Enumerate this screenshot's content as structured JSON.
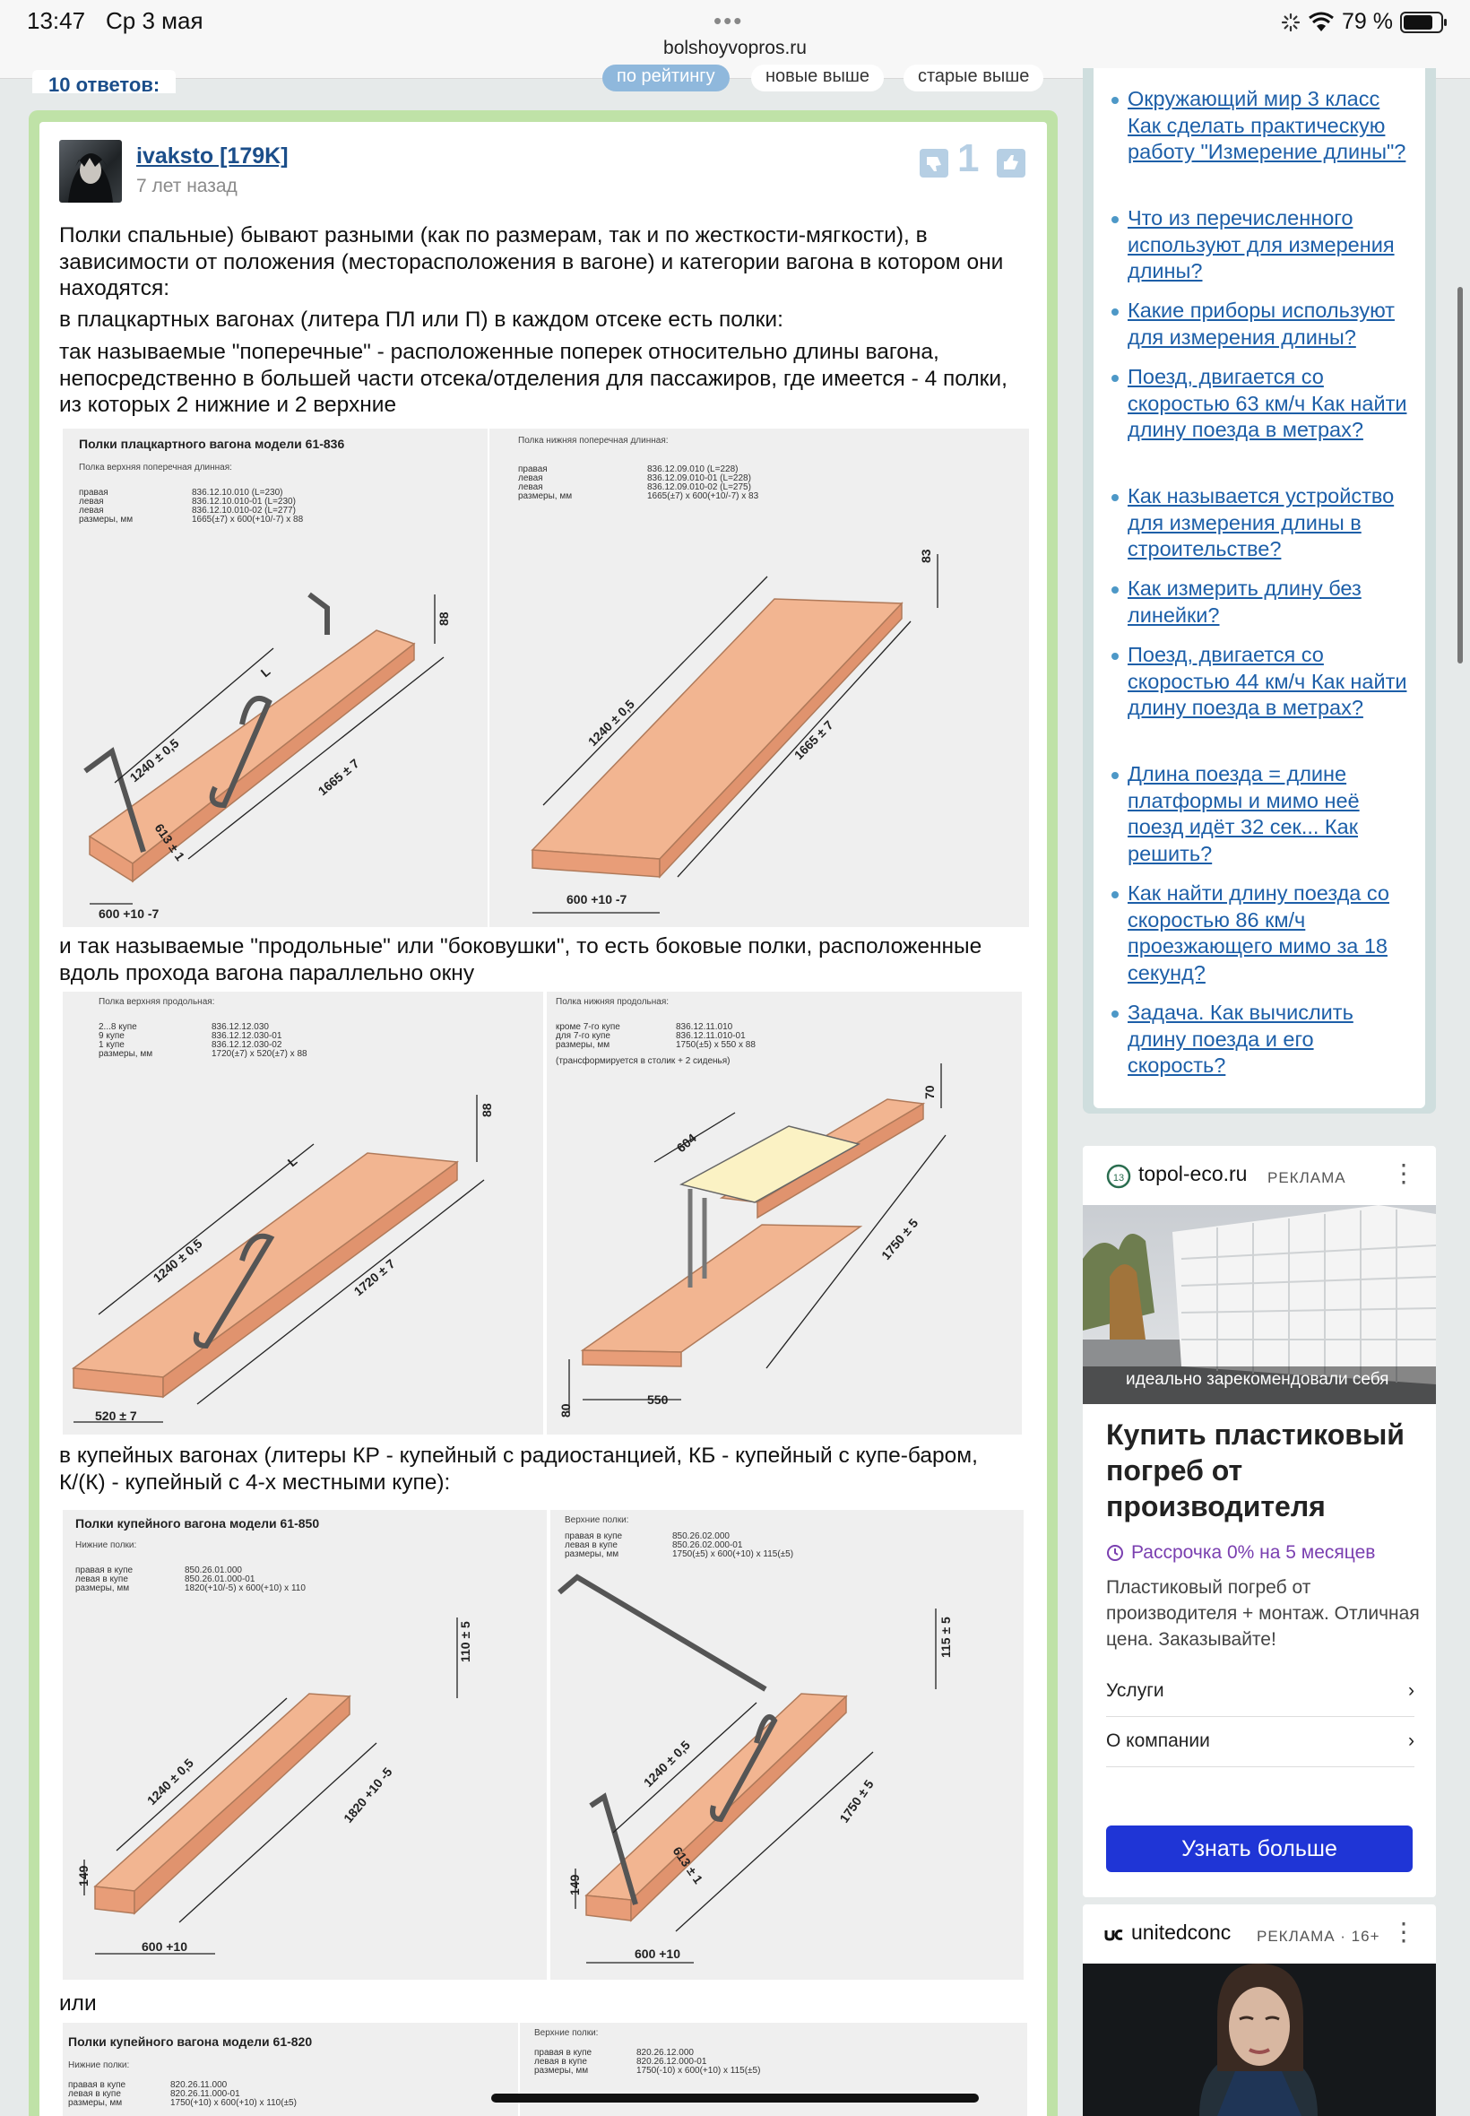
{
  "status_bar": {
    "time": "13:47",
    "date": "Ср 3 мая",
    "url": "bolshoyvopros.ru",
    "battery": "79 %",
    "dots": "•••"
  },
  "tabs": {
    "answers_count": "10 ответов:",
    "sort_rating": "по рейтингу",
    "sort_new": "новые выше",
    "sort_old": "старые выше"
  },
  "answer": {
    "author": "ivaksto [179K]",
    "age": "7 лет назад",
    "votes": "1",
    "paragraphs": [
      "Полки спальные) бывают разными (как по размерам, так и по жесткости-мягкости), в зависимости от положения (месторасположения в вагоне) и категории вагона в котором они находятся:",
      "в плацкартных вагонах (литера ПЛ или П) в каждом отсеке есть полки:",
      "так называемые \"поперечные\" - расположенные поперек относительно длины вагона, непосредственно в большей части отсека/отделения для пассажиров, где имеется - 4 полки, из которых 2 нижние и 2 верхние",
      "и так называемые \"продольные\" или \"боковушки\", то есть боковые полки, расположенные вдоль прохода вагона параллельно окну",
      "в купейных вагонах (литеры КР - купейный с радиостанцией, КБ - купейный с купе-баром, К/(К) - купейный с 4-х местными купе):",
      "или"
    ]
  },
  "diagrams": {
    "d1": {
      "title": "Полки плацкартного вагона модели 61-836",
      "sub": "Полка верхняя поперечная длинная:",
      "rows": [
        [
          "правая",
          "836.12.10.010 (L=230)"
        ],
        [
          "левая",
          "836.12.10.010-01 (L=230)"
        ],
        [
          "левая",
          "836.12.10.010-02 (L=277)"
        ],
        [
          "размеры, мм",
          "1665(±7) x 600(+10/-7) x 88"
        ]
      ],
      "dims": [
        "88",
        "L",
        "1240 ± 0,5",
        "613 ± 1",
        "1665 ± 7",
        "600 +10 -7"
      ]
    },
    "d2": {
      "sub": "Полка нижняя поперечная длинная:",
      "rows": [
        [
          "правая",
          "836.12.09.010 (L=228)"
        ],
        [
          "левая",
          "836.12.09.010-01 (L=228)"
        ],
        [
          "левая",
          "836.12.09.010-02 (L=275)"
        ],
        [
          "размеры, мм",
          "1665(±7) x 600(+10/-7) x 83"
        ]
      ],
      "dims": [
        "83",
        "1240 ± 0,5",
        "1665 ± 7",
        "600 +10 -7"
      ]
    },
    "d3": {
      "sub": "Полка верхняя продольная:",
      "rows": [
        [
          "2...8 купе",
          "836.12.12.030"
        ],
        [
          "9 купе",
          "836.12.12.030-01"
        ],
        [
          "1 купе",
          "836.12.12.030-02"
        ],
        [
          "размеры, мм",
          "1720(±7) x 520(±7) x 88"
        ]
      ],
      "dims": [
        "88",
        "L",
        "1240 ± 0,5",
        "1720 ± 7",
        "520 ± 7"
      ]
    },
    "d4": {
      "sub": "Полка нижняя продольная:",
      "rows": [
        [
          "кроме 7-го купе",
          "836.12.11.010"
        ],
        [
          "для 7-го купе",
          "836.12.11.010-01"
        ],
        [
          "размеры, мм",
          "1750(±5) x 550 x 88"
        ]
      ],
      "note": "(трансформируется в столик + 2 сиденья)",
      "dims": [
        "70",
        "604",
        "1750 ± 5",
        "80",
        "550"
      ]
    },
    "d5": {
      "title": "Полки купейного вагона модели 61-850",
      "sub": "Нижние полки:",
      "rows": [
        [
          "правая в купе",
          "850.26.01.000"
        ],
        [
          "левая в купе",
          "850.26.01.000-01"
        ],
        [
          "размеры, мм",
          "1820(+10/-5) x 600(+10) x 110"
        ]
      ],
      "dims": [
        "110 ± 5",
        "1240 ± 0,5",
        "1820 +10 -5",
        "149",
        "600 +10"
      ]
    },
    "d6": {
      "sub": "Верхние полки:",
      "rows": [
        [
          "правая в купе",
          "850.26.02.000"
        ],
        [
          "левая в купе",
          "850.26.02.000-01"
        ],
        [
          "размеры, мм",
          "1750(±5) x 600(+10) x 115(±5)"
        ]
      ],
      "dims": [
        "115 ± 5",
        "1240 ± 0,5",
        "613 ± 1",
        "1750 ± 5",
        "149",
        "600 +10"
      ]
    },
    "d7": {
      "title": "Полки купейного вагона модели 61-820",
      "sub": "Нижние полки:",
      "rows": [
        [
          "правая в купе",
          "820.26.11.000"
        ],
        [
          "левая в купе",
          "820.26.11.000-01"
        ],
        [
          "размеры, мм",
          "1750(+10) x 600(+10) x 110(±5)"
        ]
      ]
    },
    "d8": {
      "sub": "Верхние полки:",
      "rows": [
        [
          "правая в купе",
          "820.26.12.000"
        ],
        [
          "левая в купе",
          "820.26.12.000-01"
        ],
        [
          "размеры, мм",
          "1750(-10) x 600(+10) x 115(±5)"
        ]
      ]
    }
  },
  "sidebar": {
    "items": [
      "Окружающий мир 3 класс Как сделать практическую работу \"Измерение длины\"?",
      "Что из перечисленного используют для измерения длины?",
      "Какие приборы используют для измерения длины?",
      "Поезд, двигается со скоростью 63 км/ч Как найти длину поезда в метрах?",
      "Как называется устройство для измерения длины в строительстве?",
      "Как измерить длину без линейки?",
      "Поезд, двигается со скоростью 44 км/ч Как найти длину поезда в метрах?",
      "Длина поезда = длине платформы и мимо неё поезд идёт 32 сек... Как решить?",
      "Как найти длину поезда со скоростью 86 км/ч проезжающего мимо за 18 секунд?",
      "Задача. Как вычислить длину поезда и его скорость?"
    ]
  },
  "ad1": {
    "site": "topol-eco.ru",
    "tag": "РЕКЛАМА",
    "more": "⋮",
    "image_caption": "идеально зарекомендовали себя",
    "title": "Купить пластиковый погреб от производителя",
    "promo": "Рассрочка 0% на 5 месяцев",
    "description": "Пластиковый погреб от производителя + монтаж. Отличная цена. Заказывайте!",
    "links": [
      "Услуги",
      "О компании"
    ],
    "chevron": "›",
    "button": "Узнать больше"
  },
  "ad2": {
    "site": "unitedconc",
    "tag": "РЕКЛАМА · 16+",
    "more": "⋮"
  },
  "colors": {
    "link": "#1d5fa8",
    "shelf": "#f2b591",
    "answer_border": "#bfe2a7",
    "ad_button": "#1f35d6"
  }
}
